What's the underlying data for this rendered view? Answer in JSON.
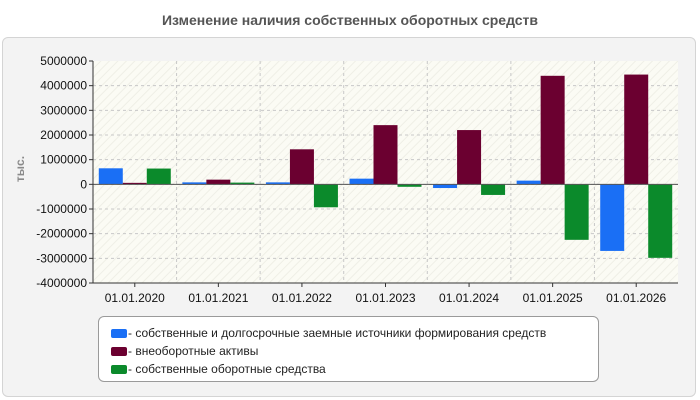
{
  "chart_data": {
    "type": "bar",
    "title": "Изменение наличия собственных оборотных средств",
    "ylabel": "тыс.",
    "xlabel": "",
    "categories": [
      "01.01.2020",
      "01.01.2021",
      "01.01.2022",
      "01.01.2023",
      "01.01.2024",
      "01.01.2025",
      "01.01.2026"
    ],
    "ylim": [
      -4000000,
      5000000
    ],
    "yticks": [
      5000000,
      4000000,
      3000000,
      2000000,
      1000000,
      0,
      -1000000,
      -2000000,
      -3000000,
      -4000000
    ],
    "yticks_labels": [
      "5000000",
      "4000000",
      "3000000",
      "2000000",
      "1000000",
      "0",
      "-1000000",
      "-2000000",
      "-3000000",
      "-4000000"
    ],
    "grid": true,
    "legend_position": "bottom",
    "series": [
      {
        "name": "- собственные и долгосрочные заемные источники формирования средств",
        "color": "#1a6ff5",
        "values": [
          650000,
          80000,
          80000,
          230000,
          -150000,
          150000,
          -2700000
        ]
      },
      {
        "name": "- внеоборотные активы",
        "color": "#6b0030",
        "values": [
          60000,
          190000,
          1420000,
          2400000,
          2200000,
          4400000,
          4450000
        ]
      },
      {
        "name": "- собственные оборотные средства",
        "color": "#0b8a2b",
        "values": [
          640000,
          70000,
          -930000,
          -100000,
          -430000,
          -2250000,
          -2980000
        ]
      }
    ]
  }
}
